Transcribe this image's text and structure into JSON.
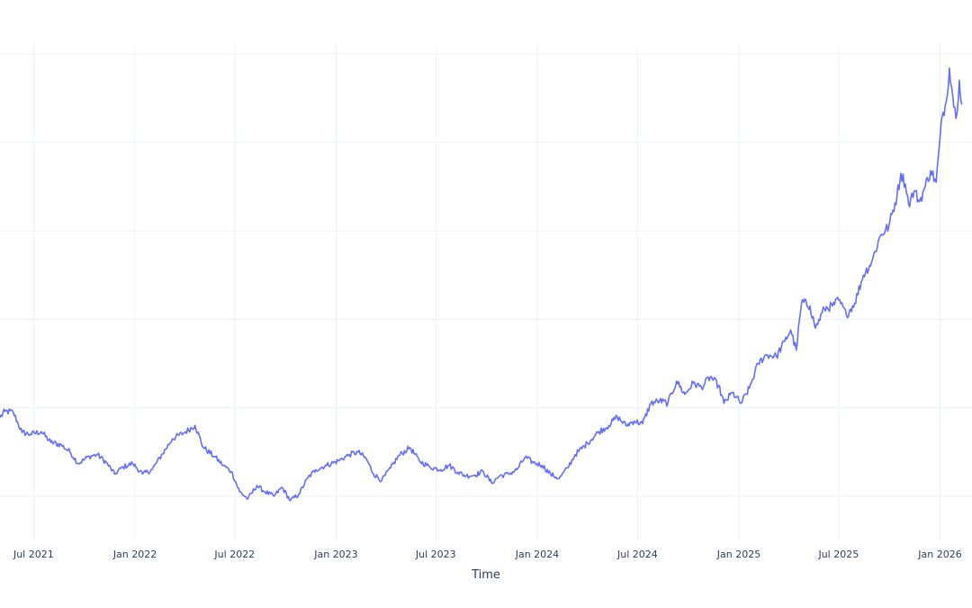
{
  "chart_data": {
    "type": "line",
    "title": "",
    "xlabel": "Time",
    "ylabel": "",
    "xlim": [
      "2021-05-01",
      "2026-02-28"
    ],
    "ylim": [
      0,
      5.6
    ],
    "grid": true,
    "legend": "none",
    "line_color": "#636efa",
    "x_ticks": [
      {
        "date": "2021-07-01",
        "label": "Jul 2021"
      },
      {
        "date": "2022-01-01",
        "label": "Jan 2022"
      },
      {
        "date": "2022-07-01",
        "label": "Jul 2022"
      },
      {
        "date": "2023-01-01",
        "label": "Jan 2023"
      },
      {
        "date": "2023-07-01",
        "label": "Jul 2023"
      },
      {
        "date": "2024-01-01",
        "label": "Jan 2024"
      },
      {
        "date": "2024-07-01",
        "label": "Jul 2024"
      },
      {
        "date": "2025-01-01",
        "label": "Jan 2025"
      },
      {
        "date": "2025-07-01",
        "label": "Jul 2025"
      },
      {
        "date": "2026-01-01",
        "label": "Jan 2026"
      }
    ],
    "y_gridlines": [
      0.5,
      1.5,
      2.5,
      3.5,
      4.5,
      5.5
    ],
    "series": [
      {
        "points": [
          [
            "2021-05-01",
            1.39
          ],
          [
            "2021-05-10",
            1.46
          ],
          [
            "2021-05-25",
            1.45
          ],
          [
            "2021-06-10",
            1.22
          ],
          [
            "2021-06-25",
            1.2
          ],
          [
            "2021-07-15",
            1.23
          ],
          [
            "2021-08-01",
            1.11
          ],
          [
            "2021-08-20",
            1.08
          ],
          [
            "2021-09-05",
            1.0
          ],
          [
            "2021-09-20",
            0.87
          ],
          [
            "2021-10-10",
            0.95
          ],
          [
            "2021-10-25",
            0.97
          ],
          [
            "2021-11-10",
            0.88
          ],
          [
            "2021-11-25",
            0.75
          ],
          [
            "2021-12-10",
            0.83
          ],
          [
            "2021-12-28",
            0.87
          ],
          [
            "2022-01-15",
            0.75
          ],
          [
            "2022-02-01",
            0.8
          ],
          [
            "2022-02-20",
            0.98
          ],
          [
            "2022-03-10",
            1.15
          ],
          [
            "2022-04-01",
            1.22
          ],
          [
            "2022-04-20",
            1.3
          ],
          [
            "2022-05-05",
            1.05
          ],
          [
            "2022-05-25",
            0.95
          ],
          [
            "2022-06-10",
            0.85
          ],
          [
            "2022-06-25",
            0.78
          ],
          [
            "2022-07-10",
            0.55
          ],
          [
            "2022-07-25",
            0.47
          ],
          [
            "2022-08-10",
            0.62
          ],
          [
            "2022-08-25",
            0.55
          ],
          [
            "2022-09-10",
            0.5
          ],
          [
            "2022-09-25",
            0.6
          ],
          [
            "2022-10-10",
            0.45
          ],
          [
            "2022-10-25",
            0.52
          ],
          [
            "2022-11-10",
            0.7
          ],
          [
            "2022-11-25",
            0.8
          ],
          [
            "2022-12-15",
            0.85
          ],
          [
            "2023-01-05",
            0.9
          ],
          [
            "2023-01-25",
            0.97
          ],
          [
            "2023-02-10",
            1.0
          ],
          [
            "2023-02-25",
            0.92
          ],
          [
            "2023-03-10",
            0.75
          ],
          [
            "2023-03-25",
            0.68
          ],
          [
            "2023-04-10",
            0.82
          ],
          [
            "2023-04-25",
            0.96
          ],
          [
            "2023-05-15",
            1.05
          ],
          [
            "2023-06-01",
            0.9
          ],
          [
            "2023-06-20",
            0.83
          ],
          [
            "2023-07-10",
            0.8
          ],
          [
            "2023-07-25",
            0.85
          ],
          [
            "2023-08-10",
            0.77
          ],
          [
            "2023-08-25",
            0.73
          ],
          [
            "2023-09-10",
            0.74
          ],
          [
            "2023-09-25",
            0.78
          ],
          [
            "2023-10-10",
            0.65
          ],
          [
            "2023-10-25",
            0.73
          ],
          [
            "2023-11-10",
            0.75
          ],
          [
            "2023-11-25",
            0.8
          ],
          [
            "2023-12-10",
            0.94
          ],
          [
            "2023-12-25",
            0.88
          ],
          [
            "2024-01-10",
            0.85
          ],
          [
            "2024-01-25",
            0.75
          ],
          [
            "2024-02-10",
            0.7
          ],
          [
            "2024-02-25",
            0.82
          ],
          [
            "2024-03-10",
            0.97
          ],
          [
            "2024-04-01",
            1.1
          ],
          [
            "2024-04-20",
            1.22
          ],
          [
            "2024-05-10",
            1.3
          ],
          [
            "2024-05-25",
            1.4
          ],
          [
            "2024-06-10",
            1.3
          ],
          [
            "2024-06-25",
            1.35
          ],
          [
            "2024-07-10",
            1.32
          ],
          [
            "2024-07-25",
            1.55
          ],
          [
            "2024-08-10",
            1.58
          ],
          [
            "2024-08-25",
            1.55
          ],
          [
            "2024-09-10",
            1.8
          ],
          [
            "2024-09-25",
            1.65
          ],
          [
            "2024-10-10",
            1.78
          ],
          [
            "2024-10-25",
            1.73
          ],
          [
            "2024-11-10",
            1.85
          ],
          [
            "2024-11-25",
            1.75
          ],
          [
            "2024-12-05",
            1.55
          ],
          [
            "2024-12-20",
            1.67
          ],
          [
            "2025-01-05",
            1.55
          ],
          [
            "2025-01-20",
            1.72
          ],
          [
            "2025-02-05",
            2.0
          ],
          [
            "2025-02-20",
            2.1
          ],
          [
            "2025-03-10",
            2.08
          ],
          [
            "2025-03-25",
            2.25
          ],
          [
            "2025-04-05",
            2.38
          ],
          [
            "2025-04-15",
            2.15
          ],
          [
            "2025-04-25",
            2.7
          ],
          [
            "2025-05-10",
            2.65
          ],
          [
            "2025-05-20",
            2.4
          ],
          [
            "2025-06-05",
            2.62
          ],
          [
            "2025-06-20",
            2.65
          ],
          [
            "2025-07-01",
            2.72
          ],
          [
            "2025-07-15",
            2.55
          ],
          [
            "2025-07-30",
            2.68
          ],
          [
            "2025-08-15",
            3.0
          ],
          [
            "2025-08-30",
            3.15
          ],
          [
            "2025-09-15",
            3.45
          ],
          [
            "2025-09-30",
            3.55
          ],
          [
            "2025-10-15",
            3.9
          ],
          [
            "2025-10-22",
            4.15
          ],
          [
            "2025-10-30",
            4.03
          ],
          [
            "2025-11-05",
            3.8
          ],
          [
            "2025-11-15",
            3.95
          ],
          [
            "2025-11-25",
            3.83
          ],
          [
            "2025-12-05",
            4.0
          ],
          [
            "2025-12-15",
            4.18
          ],
          [
            "2025-12-25",
            4.05
          ],
          [
            "2026-01-05",
            4.8
          ],
          [
            "2026-01-12",
            4.95
          ],
          [
            "2026-01-18",
            5.34
          ],
          [
            "2026-01-24",
            5.03
          ],
          [
            "2026-01-30",
            4.77
          ],
          [
            "2026-02-05",
            5.2
          ],
          [
            "2026-02-10",
            4.93
          ]
        ]
      }
    ]
  }
}
